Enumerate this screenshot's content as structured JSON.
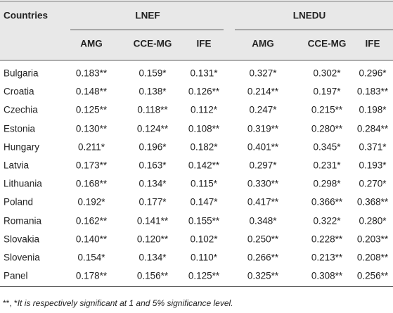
{
  "table": {
    "corner": "Countries",
    "groups": [
      "LNEF",
      "LNEDU"
    ],
    "columns": [
      "AMG",
      "CCE-MG",
      "IFE",
      "AMG",
      "CCE-MG",
      "IFE"
    ],
    "rows": [
      [
        "Bulgaria",
        "0.183**",
        "0.159*",
        "0.131*",
        "0.327*",
        "0.302*",
        "0.296*"
      ],
      [
        "Croatia",
        "0.148**",
        "0.138*",
        "0.126**",
        "0.214**",
        "0.197*",
        "0.183**"
      ],
      [
        "Czechia",
        "0.125**",
        "0.118**",
        "0.112*",
        "0.247*",
        "0.215**",
        "0.198*"
      ],
      [
        "Estonia",
        "0.130**",
        "0.124**",
        "0.108**",
        "0.319**",
        "0.280**",
        "0.284**"
      ],
      [
        "Hungary",
        "0.211*",
        "0.196*",
        "0.182*",
        "0.401**",
        "0.345*",
        "0.371*"
      ],
      [
        "Latvia",
        "0.173**",
        "0.163*",
        "0.142**",
        "0.297*",
        "0.231*",
        "0.193*"
      ],
      [
        "Lithuania",
        "0.168**",
        "0.134*",
        "0.115*",
        "0.330**",
        "0.298*",
        "0.270*"
      ],
      [
        "Poland",
        "0.192*",
        "0.177*",
        "0.147*",
        "0.417**",
        "0.366**",
        "0.368**"
      ],
      [
        "Romania",
        "0.162**",
        "0.141**",
        "0.155**",
        "0.348*",
        "0.322*",
        "0.280*"
      ],
      [
        "Slovakia",
        "0.140**",
        "0.120**",
        "0.102*",
        "0.250**",
        "0.228**",
        "0.203**"
      ],
      [
        "Slovenia",
        "0.154*",
        "0.134*",
        "0.110*",
        "0.266**",
        "0.213**",
        "0.208**"
      ],
      [
        "Panel",
        "0.178**",
        "0.156**",
        "0.125**",
        "0.325**",
        "0.308**",
        "0.256**"
      ]
    ]
  },
  "footnote": {
    "marks": "**, *",
    "text": "It is respectively significant at 1 and 5% significance level."
  }
}
